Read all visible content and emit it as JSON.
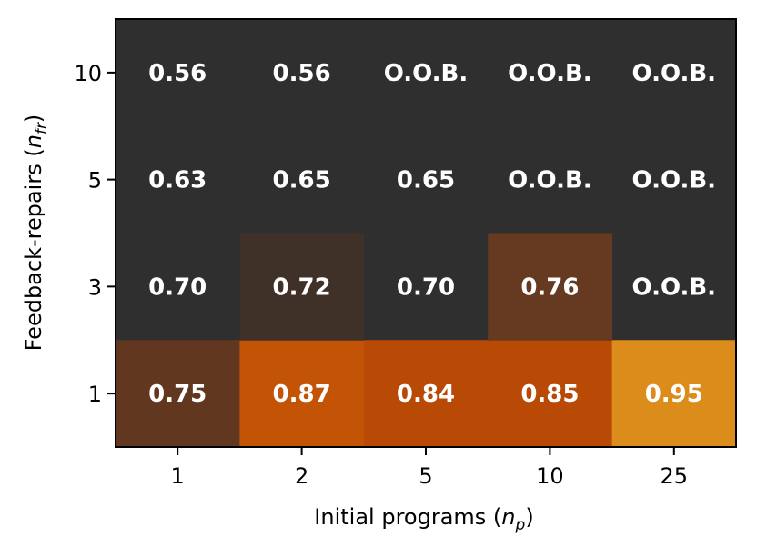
{
  "chart_data": {
    "type": "heatmap",
    "title": "",
    "xlabel": "Initial programs",
    "xlabel_symbol": "n",
    "xlabel_subscript": "p",
    "ylabel": "Feedback-repairs",
    "ylabel_symbol": "n",
    "ylabel_subscript": "fr",
    "x_categories": [
      "1",
      "2",
      "5",
      "10",
      "25"
    ],
    "y_categories": [
      "1",
      "3",
      "5",
      "10"
    ],
    "cells": [
      [
        "0.75",
        "0.87",
        "0.84",
        "0.85",
        "0.95"
      ],
      [
        "0.70",
        "0.72",
        "0.70",
        "0.76",
        "O.O.B."
      ],
      [
        "0.63",
        "0.65",
        "0.65",
        "O.O.B.",
        "O.O.B."
      ],
      [
        "0.56",
        "0.56",
        "O.O.B.",
        "O.O.B.",
        "O.O.B."
      ]
    ],
    "colors": {
      "background": "#2f2f2f",
      "0.75": "#623720",
      "0.87": "#c35406",
      "0.84": "#b84a06",
      "0.85": "#b84a06",
      "0.95": "#dc8c1a",
      "0.72": "#3f3028",
      "0.76": "#663921",
      "default": "#2f2f2f"
    },
    "grid": false,
    "legend": "none"
  }
}
